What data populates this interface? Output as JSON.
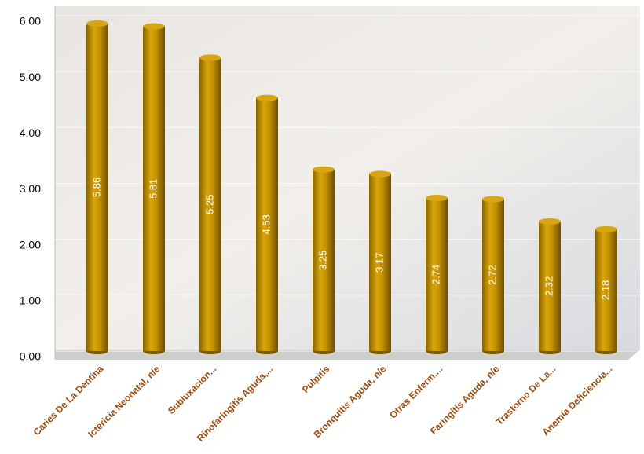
{
  "chart_data": {
    "type": "bar",
    "categories": [
      "Caries De La Dentina",
      "Ictericia Neonatal, n/e",
      "Subluxacion...",
      "Rinofaringitis Aguda,...",
      "Pulpitis",
      "Bronquitis Aguda, n/e",
      "Otras Enferm....",
      "Faringitis Aguda, n/e",
      "Trastorno De La...",
      "Anemia Deficiencia..."
    ],
    "values": [
      5.86,
      5.81,
      5.25,
      4.53,
      3.25,
      3.17,
      2.74,
      2.72,
      2.32,
      2.18
    ],
    "color": "#c49200",
    "ylim": [
      0,
      6
    ],
    "yticks": [
      {
        "value": 0,
        "label": "0.00"
      },
      {
        "value": 1,
        "label": "1.00"
      },
      {
        "value": 2,
        "label": "2.00"
      },
      {
        "value": 3,
        "label": "3.00"
      },
      {
        "value": 4,
        "label": "4.00"
      },
      {
        "value": 5,
        "label": "5.00"
      },
      {
        "value": 6,
        "label": "6.00"
      }
    ],
    "grid": true
  }
}
